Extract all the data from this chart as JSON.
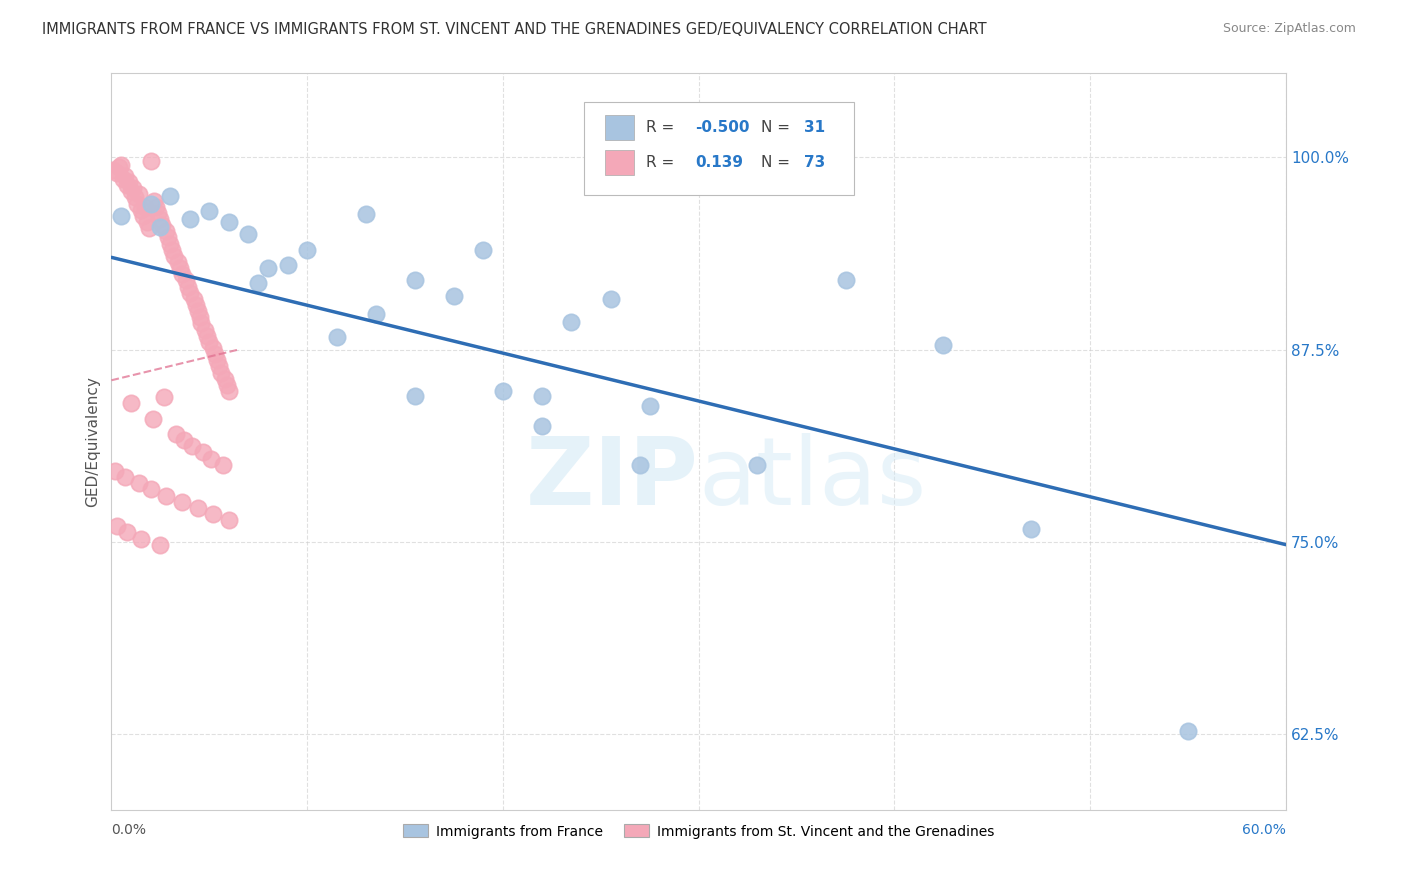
{
  "title": "IMMIGRANTS FROM FRANCE VS IMMIGRANTS FROM ST. VINCENT AND THE GRENADINES GED/EQUIVALENCY CORRELATION CHART",
  "source": "Source: ZipAtlas.com",
  "ylabel": "GED/Equivalency",
  "y_ticks": [
    0.625,
    0.75,
    0.875,
    1.0
  ],
  "y_tick_labels": [
    "62.5%",
    "75.0%",
    "87.5%",
    "100.0%"
  ],
  "xlim": [
    0.0,
    0.6
  ],
  "ylim": [
    0.575,
    1.055
  ],
  "blue_R": -0.5,
  "blue_N": 31,
  "pink_R": 0.139,
  "pink_N": 73,
  "blue_color": "#a8c4e0",
  "blue_line_color": "#2e6db4",
  "pink_color": "#f4a8b8",
  "pink_line_color": "#e07090",
  "background_color": "#ffffff",
  "grid_color": "#cccccc",
  "legend_value_color": "#2878c8",
  "blue_line_x0": 0.0,
  "blue_line_y0": 0.935,
  "blue_line_x1": 0.6,
  "blue_line_y1": 0.748,
  "pink_line_x0": 0.0,
  "pink_line_y0": 0.855,
  "pink_line_x1": 0.065,
  "pink_line_y1": 0.875,
  "blue_x": [
    0.02,
    0.04,
    0.13,
    0.19,
    0.07,
    0.09,
    0.155,
    0.175,
    0.1,
    0.05,
    0.235,
    0.255,
    0.115,
    0.135,
    0.08,
    0.2,
    0.375,
    0.03,
    0.22,
    0.275,
    0.06,
    0.425,
    0.155,
    0.22,
    0.27,
    0.55,
    0.47,
    0.005,
    0.025,
    0.075,
    0.33
  ],
  "blue_y": [
    0.97,
    0.96,
    0.963,
    0.94,
    0.95,
    0.93,
    0.92,
    0.91,
    0.94,
    0.965,
    0.893,
    0.908,
    0.883,
    0.898,
    0.928,
    0.848,
    0.92,
    0.975,
    0.845,
    0.838,
    0.958,
    0.878,
    0.845,
    0.825,
    0.8,
    0.627,
    0.758,
    0.962,
    0.955,
    0.918,
    0.8
  ],
  "pink_x": [
    0.005,
    0.007,
    0.008,
    0.01,
    0.012,
    0.013,
    0.015,
    0.016,
    0.018,
    0.019,
    0.02,
    0.022,
    0.023,
    0.024,
    0.025,
    0.026,
    0.028,
    0.029,
    0.03,
    0.031,
    0.032,
    0.034,
    0.035,
    0.036,
    0.038,
    0.039,
    0.04,
    0.042,
    0.043,
    0.044,
    0.045,
    0.046,
    0.048,
    0.049,
    0.05,
    0.052,
    0.053,
    0.054,
    0.055,
    0.056,
    0.058,
    0.059,
    0.06,
    0.003,
    0.006,
    0.009,
    0.011,
    0.014,
    0.017,
    0.021,
    0.027,
    0.033,
    0.037,
    0.041,
    0.047,
    0.051,
    0.057,
    0.004,
    0.002,
    0.007,
    0.014,
    0.02,
    0.028,
    0.036,
    0.044,
    0.052,
    0.06,
    0.001,
    0.003,
    0.008,
    0.015,
    0.025,
    0.01
  ],
  "pink_y": [
    0.995,
    0.988,
    0.982,
    0.978,
    0.974,
    0.97,
    0.966,
    0.962,
    0.958,
    0.954,
    0.998,
    0.972,
    0.968,
    0.964,
    0.96,
    0.956,
    0.952,
    0.948,
    0.944,
    0.94,
    0.936,
    0.932,
    0.928,
    0.924,
    0.92,
    0.916,
    0.912,
    0.908,
    0.904,
    0.9,
    0.896,
    0.892,
    0.888,
    0.884,
    0.88,
    0.876,
    0.872,
    0.868,
    0.864,
    0.86,
    0.856,
    0.852,
    0.848,
    0.99,
    0.986,
    0.984,
    0.98,
    0.976,
    0.968,
    0.83,
    0.844,
    0.82,
    0.816,
    0.812,
    0.808,
    0.804,
    0.8,
    0.994,
    0.796,
    0.792,
    0.788,
    0.784,
    0.78,
    0.776,
    0.772,
    0.768,
    0.764,
    0.992,
    0.76,
    0.756,
    0.752,
    0.748,
    0.84
  ]
}
